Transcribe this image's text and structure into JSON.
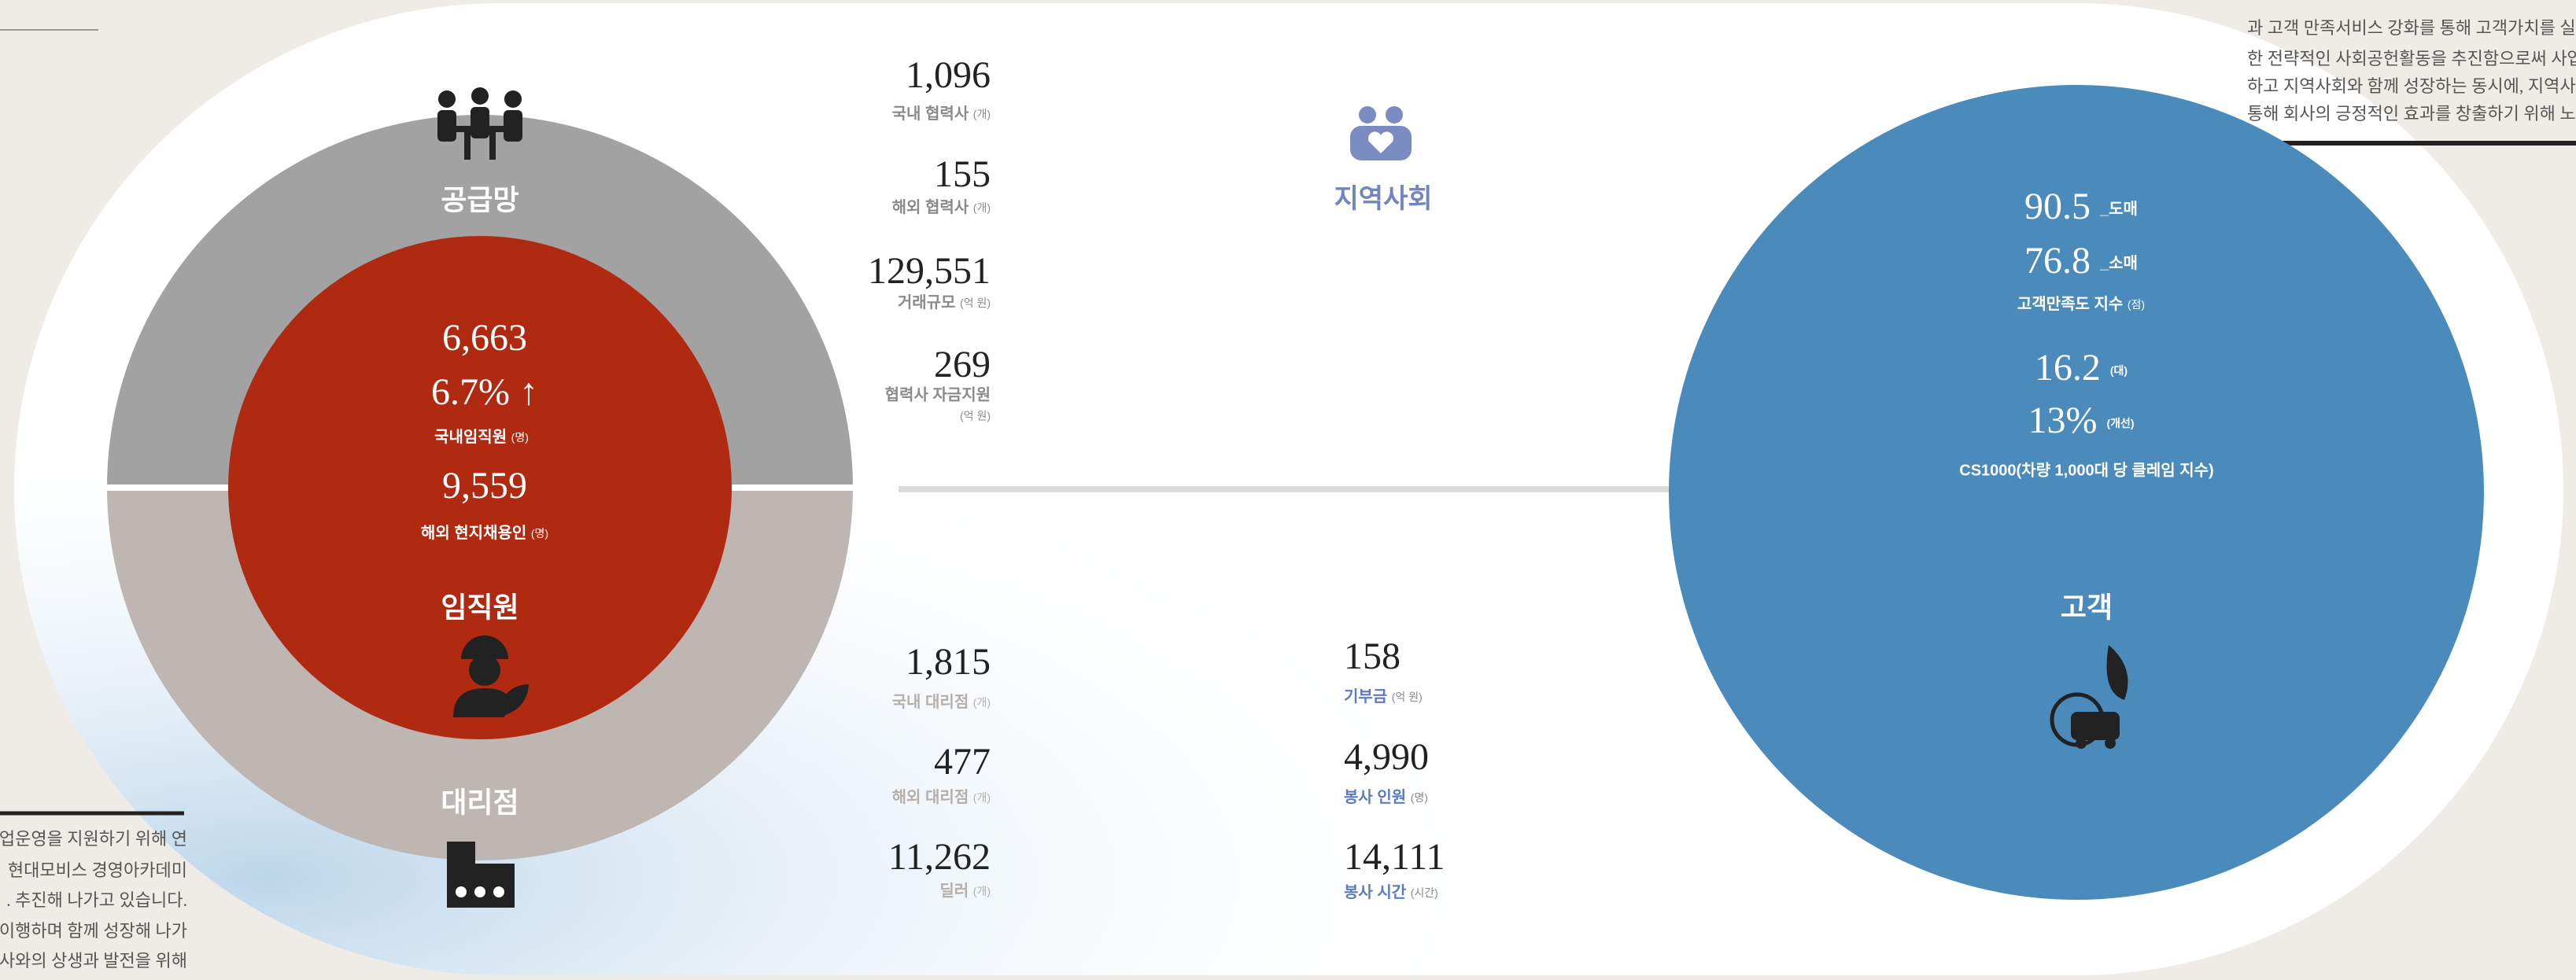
{
  "intro_left": {
    "lines": [
      "업운영을 지원하기 위해 연",
      "현대모비스 경영아카데미",
      ". 추진해 나가고 있습니다.",
      "이행하며 함께 성장해 나가",
      "사와의 상생과 발전을 위해"
    ]
  },
  "intro_right": {
    "lines": [
      "과 고객 만족서비스 강화를 통해 고객가치를 실",
      "한 전략적인 사회공헌활동을 추진함으로써 사업",
      "하고 지역사회와 함께 성장하는 동시에, 지역사",
      "통해 회사의 긍정적인 효과를 창출하기 위해 노력"
    ]
  },
  "supply_chain": {
    "title": "공급망",
    "items": [
      {
        "value": "1,096",
        "label": "국내 협력사",
        "unit": "(개)"
      },
      {
        "value": "155",
        "label": "해외 협력사",
        "unit": "(개)"
      },
      {
        "value": "129,551",
        "label": "거래규모",
        "unit": "(억 원)"
      },
      {
        "value": "269",
        "label": "협력사 자금지원",
        "unit": "(억 원)"
      }
    ]
  },
  "employees": {
    "title": "임직원",
    "domestic": "6,663",
    "growth": "6.7% ↑",
    "domestic_label": "국내임직원",
    "domestic_unit": "(명)",
    "overseas": "9,559",
    "overseas_label": "해외 현지채용인",
    "overseas_unit": "(명)"
  },
  "dealers": {
    "title": "대리점",
    "items": [
      {
        "value": "1,815",
        "label": "국내 대리점",
        "unit": "(개)"
      },
      {
        "value": "477",
        "label": "해외 대리점",
        "unit": "(개)"
      },
      {
        "value": "11,262",
        "label": "딜러",
        "unit": "(개)"
      }
    ]
  },
  "community": {
    "title": "지역사회",
    "items": [
      {
        "value": "158",
        "label": "기부금",
        "unit": "(억 원)"
      },
      {
        "value": "4,990",
        "label": "봉사 인원",
        "unit": "(명)"
      },
      {
        "value": "14,111",
        "label": "봉사 시간",
        "unit": "(시간)"
      }
    ]
  },
  "customer": {
    "title": "고객",
    "satisfaction": [
      {
        "value": "90.5",
        "label": "_도매"
      },
      {
        "value": "76.8",
        "label": "_소매"
      }
    ],
    "satisfaction_label": "고객만족도 지수",
    "satisfaction_unit": "(점)",
    "cs": [
      {
        "value": "16.2",
        "label": "(대)"
      },
      {
        "value": "13%",
        "label": "(개선)"
      }
    ],
    "cs_label": "CS1000(차량 1,000대 당 클레임 지수)"
  }
}
